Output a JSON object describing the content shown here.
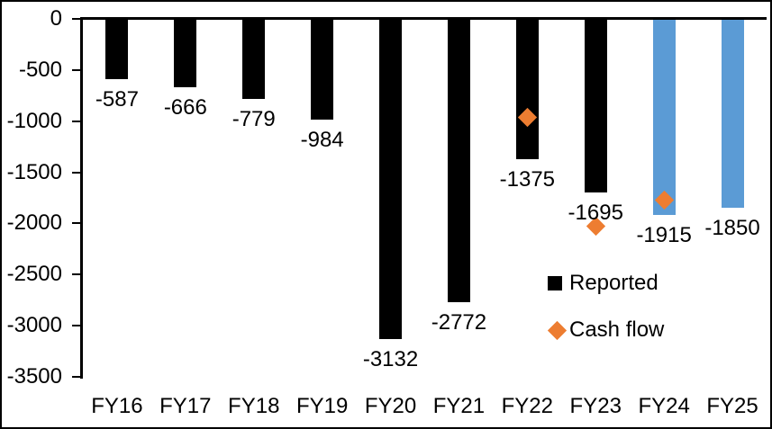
{
  "chart_data": {
    "type": "bar",
    "title": "",
    "xlabel": "",
    "ylabel": "",
    "categories": [
      "FY16",
      "FY17",
      "FY18",
      "FY19",
      "FY20",
      "FY21",
      "FY22",
      "FY23",
      "FY24",
      "FY25"
    ],
    "series": [
      {
        "name": "Reported",
        "type": "bar",
        "color": "#000000",
        "values": [
          -587,
          -666,
          -779,
          -984,
          -3132,
          -2772,
          -1375,
          -1695,
          null,
          null
        ],
        "data_labels": true
      },
      {
        "name": "Reported (blue bars, not shown in legend)",
        "type": "bar",
        "color": "#5B9BD5",
        "values": [
          null,
          null,
          null,
          null,
          null,
          null,
          null,
          null,
          -1915,
          -1850
        ],
        "data_labels": true
      },
      {
        "name": "Cash flow",
        "type": "scatter",
        "marker": "diamond",
        "color": "#ED7D31",
        "values": [
          null,
          null,
          null,
          null,
          null,
          null,
          -960,
          -2030,
          -1770,
          null
        ],
        "data_labels": false
      }
    ],
    "ylim": [
      -3500,
      0
    ],
    "yticks": [
      0,
      -500,
      -1000,
      -1500,
      -2000,
      -2500,
      -3000,
      -3500
    ],
    "grid": false,
    "legend": {
      "position": "inside-right",
      "entries": [
        {
          "label": "Reported",
          "marker": "square",
          "color": "#000000"
        },
        {
          "label": "Cash flow",
          "marker": "diamond",
          "color": "#ED7D31"
        }
      ]
    }
  },
  "colors": {
    "background": "#FFFFFF",
    "border": "#000000",
    "axis": "#000000",
    "text": "#000000",
    "bar_black": "#000000",
    "bar_blue": "#5B9BD5",
    "diamond_orange": "#ED7D31"
  }
}
